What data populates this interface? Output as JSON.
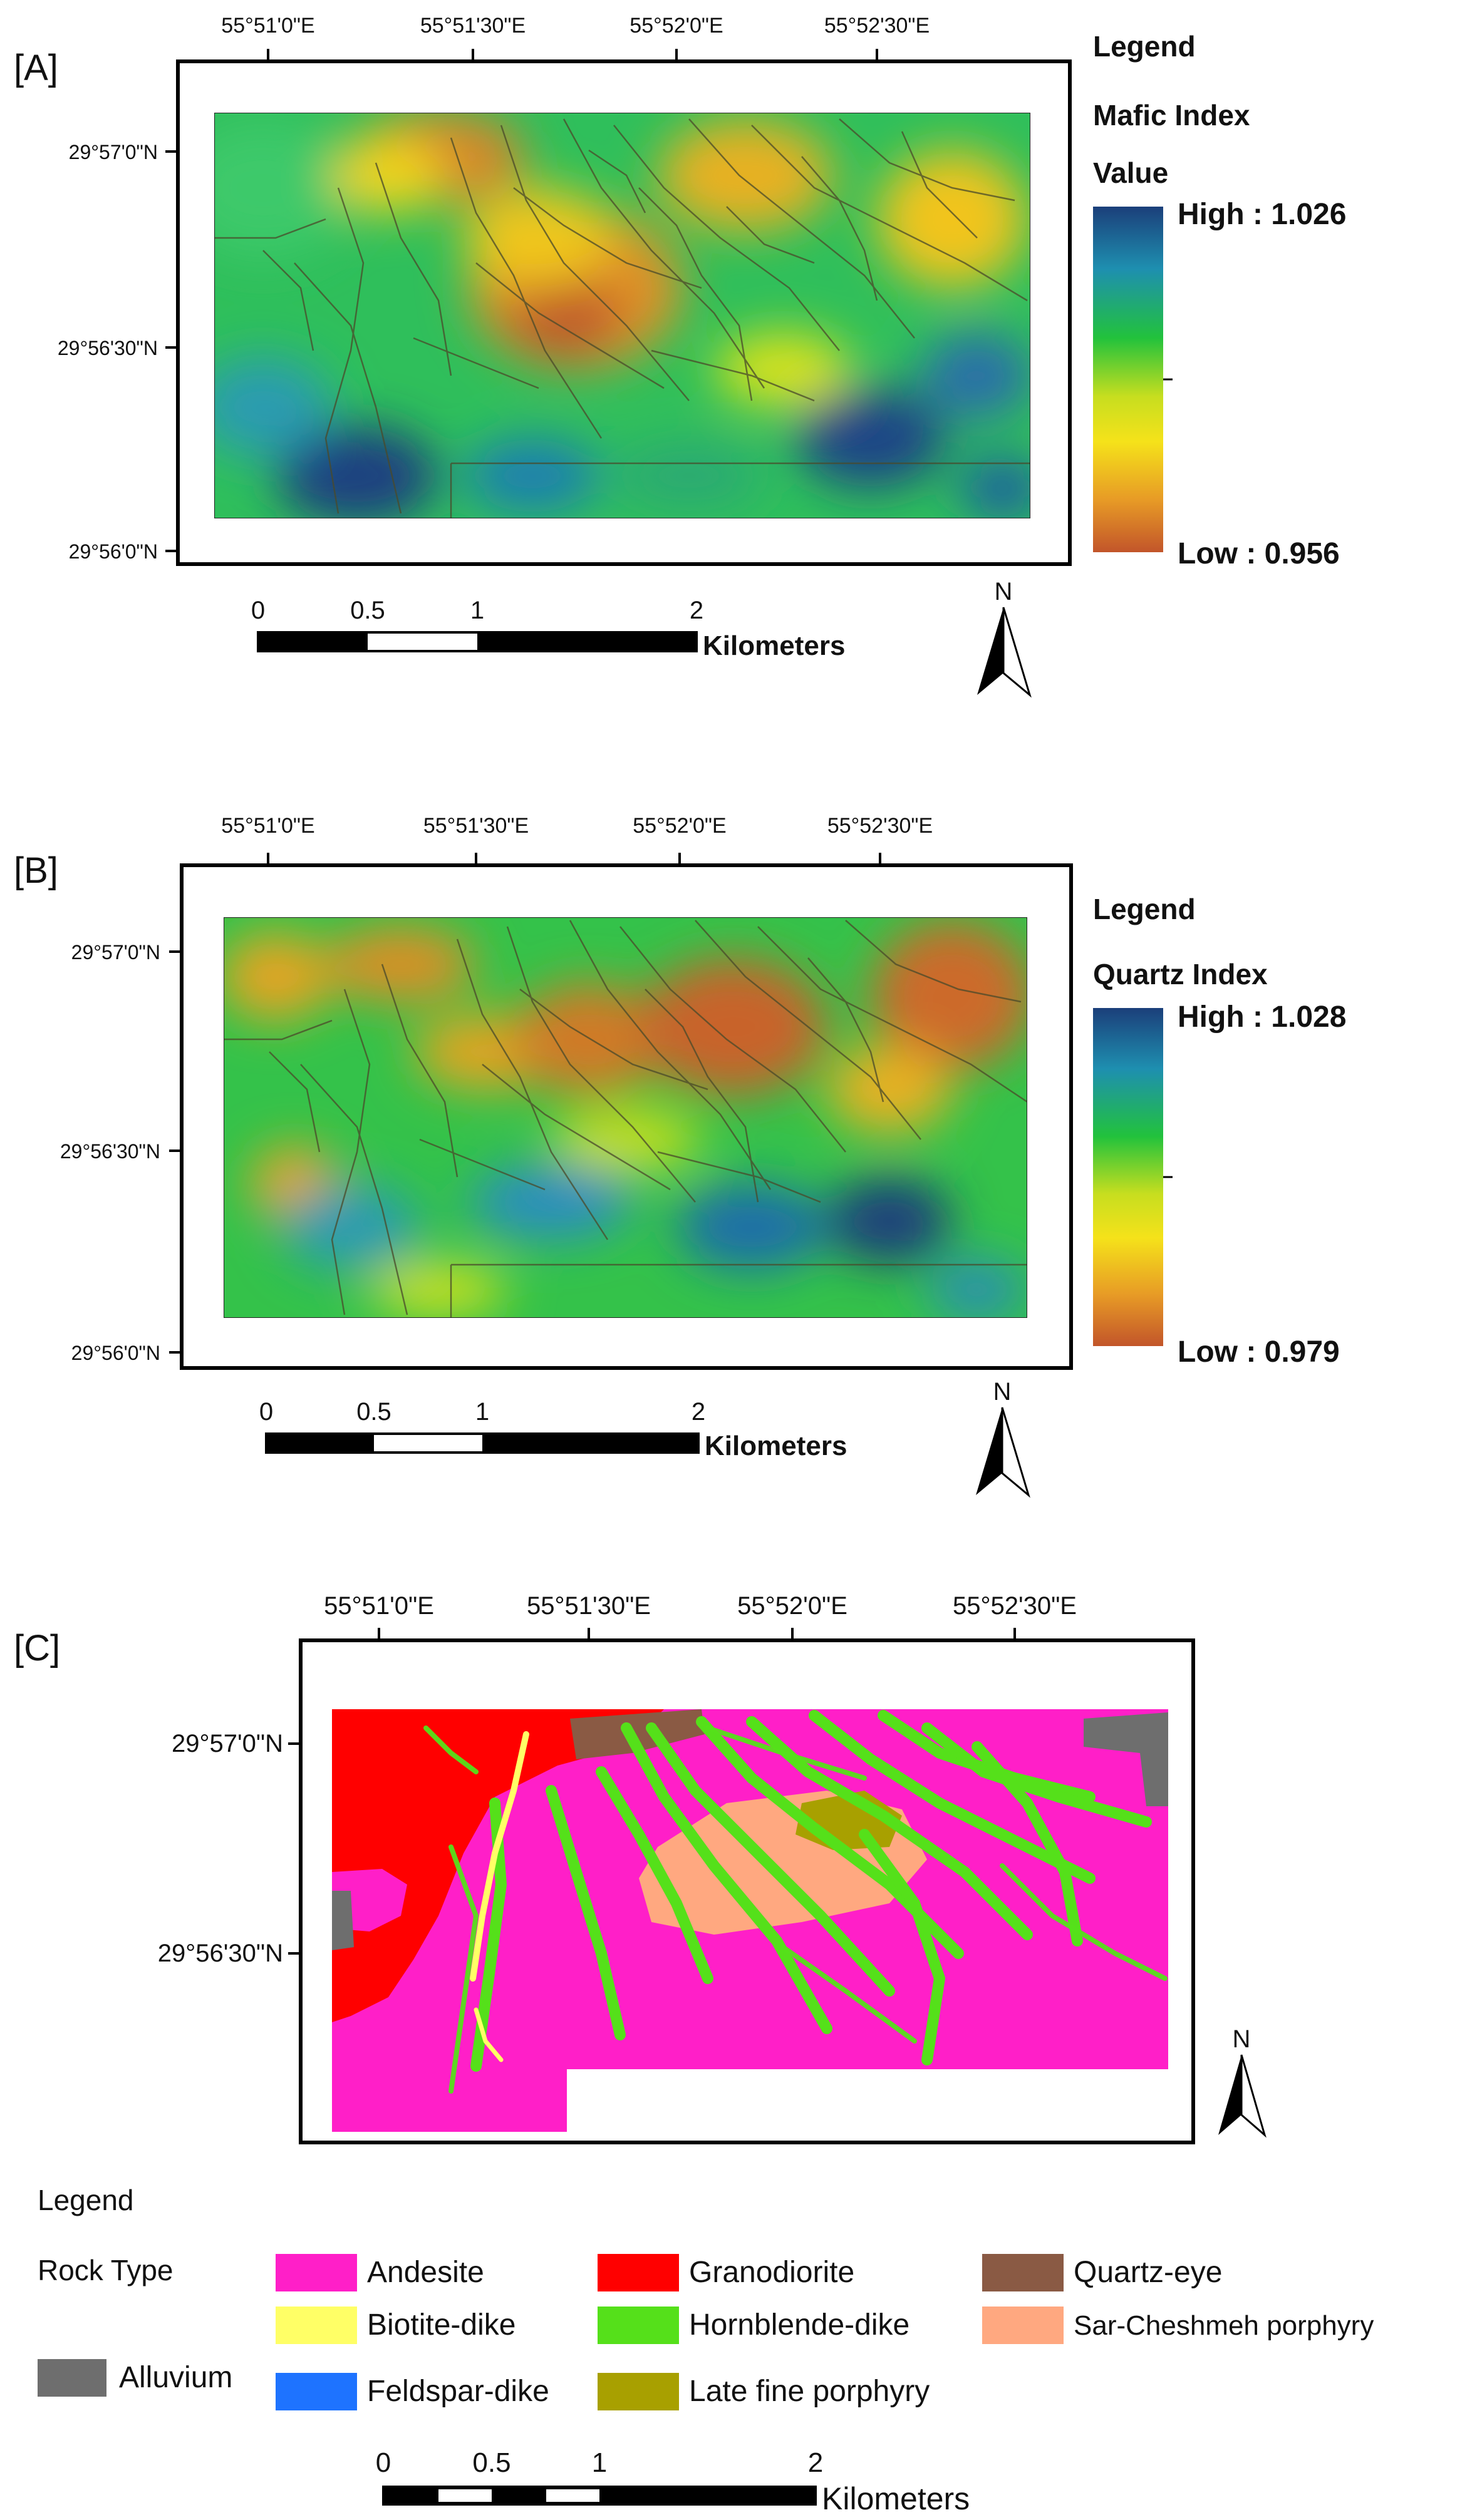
{
  "panels": {
    "a": {
      "tag": "[A]",
      "lon_ticks": [
        "55°51'0\"E",
        "55°51'30\"E",
        "55°52'0\"E",
        "55°52'30\"E"
      ],
      "lat_ticks": [
        "29°57'0\"N",
        "29°56'30\"N",
        "29°56'0\"N"
      ],
      "legend": {
        "heading": "Legend",
        "title": "Mafic Index",
        "subtitle": "Value",
        "high": "High : 1.026",
        "low": "Low : 0.956",
        "ramp_colors": [
          "#1b3f7a",
          "#1e8fb0",
          "#22c23c",
          "#c7de1f",
          "#f5e21a",
          "#e79a26",
          "#c2552a"
        ]
      },
      "scalebar": {
        "ticks": [
          "0",
          "0.5",
          "1",
          "2"
        ],
        "unit": "Kilometers"
      },
      "north": "N"
    },
    "b": {
      "tag": "[B]",
      "lon_ticks": [
        "55°51'0\"E",
        "55°51'30\"E",
        "55°52'0\"E",
        "55°52'30\"E"
      ],
      "lat_ticks": [
        "29°57'0\"N",
        "29°56'30\"N",
        "29°56'0\"N"
      ],
      "legend": {
        "heading": "Legend",
        "title": "Quartz Index",
        "high": "High : 1.028",
        "low": "Low : 0.979",
        "ramp_colors": [
          "#1b3f7a",
          "#1e8fb0",
          "#22c23c",
          "#c7de1f",
          "#f5e21a",
          "#e79a26",
          "#c2552a"
        ]
      },
      "scalebar": {
        "ticks": [
          "0",
          "0.5",
          "1",
          "2"
        ],
        "unit": "Kilometers"
      },
      "north": "N"
    },
    "c": {
      "tag": "[C]",
      "lon_ticks": [
        "55°51'0\"E",
        "55°51'30\"E",
        "55°52'0\"E",
        "55°52'30\"E"
      ],
      "lat_ticks": [
        "29°57'0\"N",
        "29°56'30\"N"
      ],
      "legend": {
        "heading": "Legend",
        "group_label": "Rock Type",
        "items": [
          {
            "label": "Andesite",
            "color": "#ff1fc8"
          },
          {
            "label": "Granodiorite",
            "color": "#ff0000"
          },
          {
            "label": "Quartz-eye",
            "color": "#8a5a44"
          },
          {
            "label": "Biotite-dike",
            "color": "#ffff66"
          },
          {
            "label": "Hornblende-dike",
            "color": "#55e01a"
          },
          {
            "label": "Sar-Cheshmeh porphyry",
            "color": "#ffa880"
          },
          {
            "label": "Alluvium",
            "color": "#6e6e6e"
          },
          {
            "label": "Feldspar-dike",
            "color": "#1e73ff"
          },
          {
            "label": "Late fine porphyry",
            "color": "#a8a000"
          }
        ]
      },
      "scalebar": {
        "ticks": [
          "0",
          "0.5",
          "1",
          "2"
        ],
        "unit": "Kilometers"
      },
      "north": "N"
    }
  }
}
